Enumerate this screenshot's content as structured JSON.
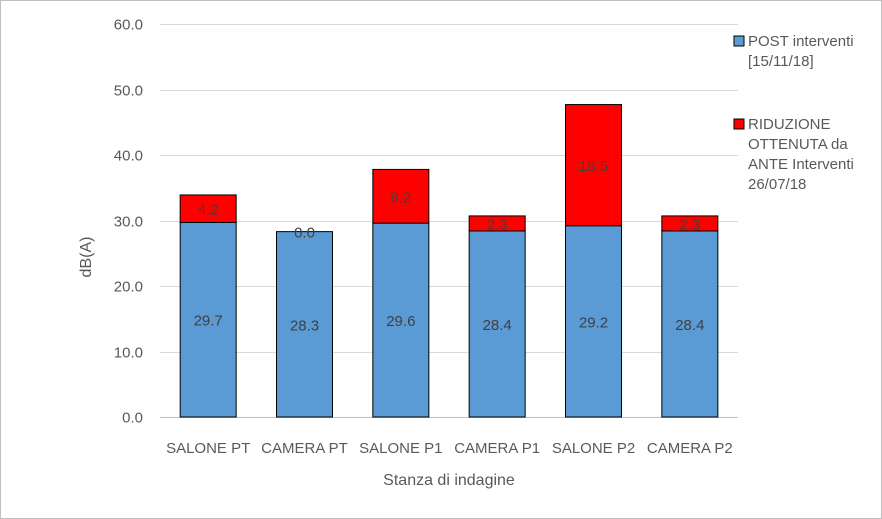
{
  "chart_data": {
    "type": "bar",
    "stacked": true,
    "categories": [
      "SALONE PT",
      "CAMERA PT",
      "SALONE P1",
      "CAMERA P1",
      "SALONE P2",
      "CAMERA P2"
    ],
    "series": [
      {
        "name": "POST interventi [15/11/18]",
        "legend_lines": [
          "POST interventi",
          "[15/11/18]"
        ],
        "color": "#5b9bd5",
        "values": [
          29.7,
          28.3,
          29.6,
          28.4,
          29.2,
          28.4
        ],
        "labels": [
          "29.7",
          "28.3",
          "29.6",
          "28.4",
          "29.2",
          "28.4"
        ]
      },
      {
        "name": "RIDUZIONE OTTENUTA da ANTE Interventi 26/07/18",
        "legend_lines": [
          "RIDUZIONE",
          "OTTENUTA da",
          "ANTE Interventi",
          "26/07/18"
        ],
        "color": "#ff0000",
        "values": [
          4.2,
          0.0,
          8.2,
          2.3,
          18.5,
          2.3
        ],
        "labels": [
          "4.2",
          "0.0",
          "8.2",
          "2.3",
          "18.5",
          "2.3"
        ]
      }
    ],
    "xlabel": "Stanza di indagine",
    "ylabel": "dB(A)",
    "ylim": [
      0,
      60
    ],
    "yticks": [
      "0.0",
      "10.0",
      "20.0",
      "30.0",
      "40.0",
      "50.0",
      "60.0"
    ],
    "grid": true,
    "legend_position": "right"
  }
}
